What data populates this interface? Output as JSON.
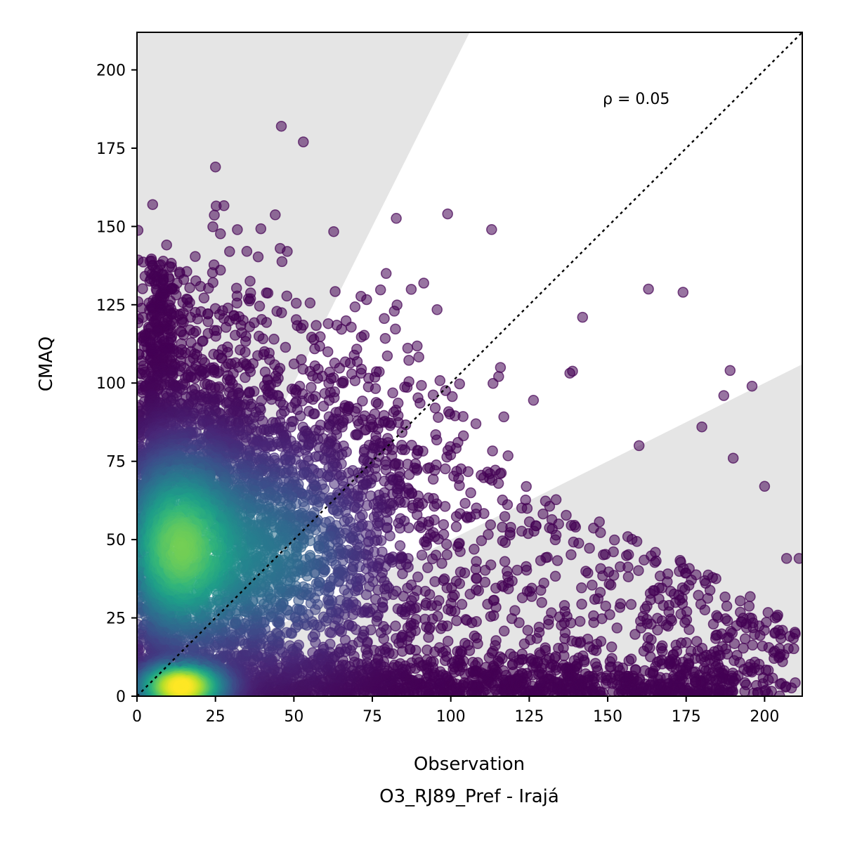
{
  "chart_data": {
    "type": "scatter",
    "xlabel": "Observation",
    "subtitle": "O3_RJ89_Pref - Irajá",
    "ylabel": "CMAQ",
    "xlim": [
      0,
      212
    ],
    "ylim": [
      0,
      212
    ],
    "x_ticks": [
      "0",
      "25",
      "50",
      "75",
      "100",
      "125",
      "150",
      "175",
      "200"
    ],
    "y_ticks": [
      "0",
      "25",
      "50",
      "75",
      "100",
      "125",
      "150",
      "175",
      "200"
    ],
    "annotation": "ρ = 0.05",
    "reference_line": {
      "type": "1:1",
      "style": "dotted",
      "color": "#000000"
    },
    "shaded_regions": [
      {
        "description": "factor of 2 exceedance above (y > 2x)",
        "color": "#e5e5e5"
      },
      {
        "description": "factor of 2 exceedance below (y < x/2)",
        "color": "#e5e5e5"
      }
    ],
    "colormap": "viridis (point density)",
    "colors": {
      "low_density": "#440154",
      "mid_density": "#21918c",
      "high_density": "#fde725"
    },
    "point_count_approx": 8000,
    "notable_points": [
      {
        "x": 46,
        "y": 182
      },
      {
        "x": 53,
        "y": 177
      },
      {
        "x": 25,
        "y": 169
      },
      {
        "x": 99,
        "y": 154
      },
      {
        "x": 113,
        "y": 149
      },
      {
        "x": 5,
        "y": 157
      },
      {
        "x": 163,
        "y": 130
      },
      {
        "x": 174,
        "y": 129
      },
      {
        "x": 142,
        "y": 121
      },
      {
        "x": 196,
        "y": 99
      },
      {
        "x": 189,
        "y": 104
      },
      {
        "x": 180,
        "y": 86
      },
      {
        "x": 200,
        "y": 67
      },
      {
        "x": 211,
        "y": 44
      },
      {
        "x": 207,
        "y": 44
      },
      {
        "x": 190,
        "y": 76
      },
      {
        "x": 187,
        "y": 96
      },
      {
        "x": 160,
        "y": 80
      }
    ]
  }
}
